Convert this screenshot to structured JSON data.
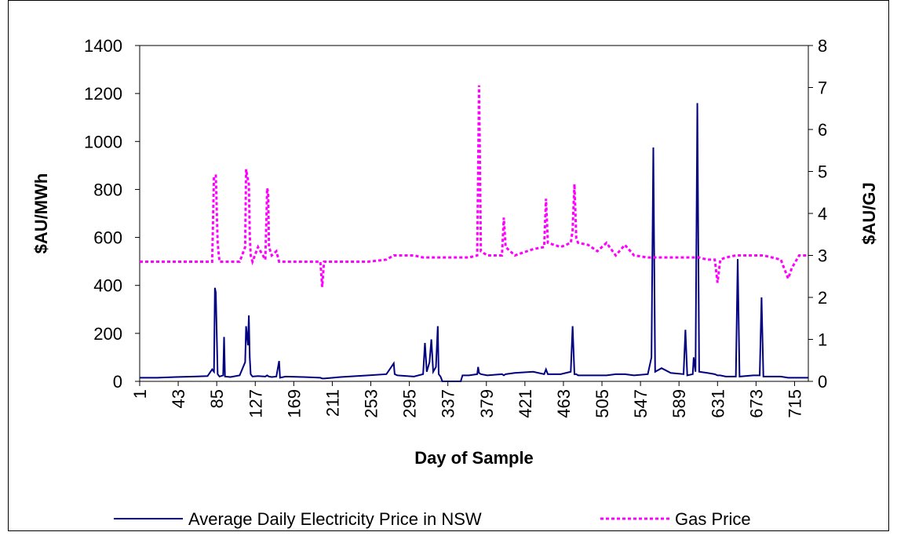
{
  "chart_data": {
    "type": "line",
    "x_label": "Day of Sample",
    "y_label": "$AU/MWh",
    "y2_label": "$AU/GJ",
    "xlim": [
      1,
      730
    ],
    "xticks": [
      1,
      43,
      85,
      127,
      169,
      211,
      253,
      295,
      337,
      379,
      421,
      463,
      505,
      547,
      589,
      631,
      673,
      715
    ],
    "ylim": [
      0,
      1400
    ],
    "yticks": [
      0,
      200,
      400,
      600,
      800,
      1000,
      1200,
      1400
    ],
    "y2lim": [
      0,
      8
    ],
    "y2ticks": [
      0,
      1,
      2,
      3,
      4,
      5,
      6,
      7,
      8
    ],
    "legend": "bottom",
    "grid": false,
    "x": [
      1,
      20,
      40,
      60,
      75,
      80,
      82,
      83,
      84,
      86,
      88,
      92,
      93,
      94,
      100,
      110,
      116,
      117,
      119,
      120,
      121,
      122,
      124,
      130,
      138,
      140,
      141,
      142,
      145,
      150,
      153,
      154,
      160,
      180,
      198,
      200,
      202,
      220,
      250,
      270,
      278,
      279,
      282,
      300,
      310,
      312,
      314,
      317,
      319,
      321,
      324,
      326,
      327,
      329,
      331,
      351,
      353,
      360,
      369,
      370,
      371,
      373,
      380,
      396,
      398,
      400,
      410,
      430,
      442,
      444,
      446,
      460,
      471,
      473,
      475,
      477,
      479,
      490,
      500,
      510,
      520,
      530,
      540,
      555,
      559,
      561,
      563,
      570,
      580,
      594,
      596,
      598,
      604,
      605,
      607,
      609,
      611,
      620,
      628,
      631,
      634,
      640,
      651,
      653,
      655,
      670,
      677,
      679,
      681,
      700,
      708,
      712,
      720,
      730
    ],
    "series": [
      {
        "name": "Average Daily Electricity Price in NSW",
        "color": "#000080",
        "dashed": false,
        "values": [
          15,
          15,
          18,
          20,
          22,
          50,
          40,
          390,
          370,
          30,
          20,
          25,
          185,
          20,
          18,
          25,
          80,
          230,
          150,
          275,
          100,
          30,
          20,
          22,
          20,
          25,
          22,
          20,
          18,
          20,
          85,
          15,
          20,
          18,
          15,
          12,
          12,
          18,
          25,
          30,
          75,
          30,
          25,
          20,
          30,
          160,
          40,
          80,
          175,
          40,
          60,
          230,
          30,
          20,
          0,
          0,
          25,
          25,
          30,
          60,
          35,
          30,
          25,
          30,
          25,
          30,
          35,
          40,
          30,
          50,
          30,
          30,
          40,
          230,
          30,
          30,
          25,
          25,
          25,
          25,
          30,
          30,
          25,
          30,
          100,
          975,
          40,
          55,
          35,
          30,
          215,
          25,
          30,
          100,
          40,
          1160,
          40,
          35,
          30,
          25,
          25,
          20,
          20,
          510,
          20,
          25,
          25,
          350,
          20,
          20,
          15,
          15,
          15,
          15
        ]
      },
      {
        "name": "Gas Price",
        "color": "#ff00ff",
        "dashed": true,
        "axis": "y2",
        "values": [
          2.85,
          2.85,
          2.85,
          2.85,
          2.85,
          2.85,
          4.9,
          4.9,
          4.9,
          3.3,
          2.85,
          2.85,
          2.85,
          2.85,
          2.85,
          2.85,
          3.2,
          5.05,
          4.8,
          4.7,
          3.5,
          3.0,
          2.85,
          3.2,
          2.9,
          4.6,
          4.5,
          3.2,
          3.0,
          3.1,
          2.85,
          2.85,
          2.85,
          2.85,
          2.85,
          2.25,
          2.85,
          2.85,
          2.85,
          2.9,
          3.0,
          3.0,
          3.0,
          3.0,
          2.95,
          2.95,
          2.95,
          2.95,
          2.95,
          2.95,
          2.95,
          2.95,
          2.95,
          2.95,
          2.95,
          2.95,
          2.95,
          2.95,
          3.0,
          5.0,
          7.05,
          3.1,
          3.0,
          3.0,
          3.9,
          3.2,
          3.0,
          3.15,
          3.2,
          4.35,
          3.3,
          3.2,
          3.3,
          3.6,
          4.7,
          3.4,
          3.3,
          3.25,
          3.1,
          3.3,
          3.0,
          3.25,
          3.0,
          2.95,
          2.95,
          2.95,
          2.95,
          2.95,
          2.95,
          2.95,
          2.95,
          2.95,
          2.95,
          2.95,
          2.95,
          2.95,
          2.95,
          2.9,
          2.9,
          2.35,
          2.9,
          2.95,
          3.0,
          3.0,
          3.0,
          3.0,
          3.0,
          3.0,
          3.0,
          2.9,
          2.45,
          2.7,
          3.0,
          3.0
        ]
      }
    ]
  }
}
